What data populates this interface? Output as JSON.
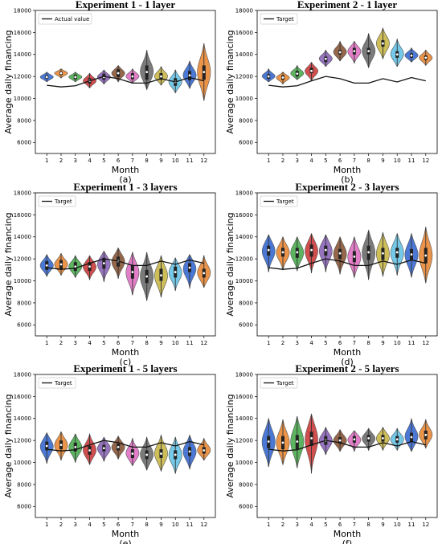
{
  "chart_data": [
    {
      "type": "violin",
      "title": "Experiment 1 - 1 layer",
      "subtitle": "(a)",
      "xlabel": "Month",
      "ylabel": "Average daily financing",
      "categories": [
        "1",
        "2",
        "3",
        "4",
        "5",
        "6",
        "7",
        "8",
        "9",
        "10",
        "11",
        "12"
      ],
      "ylim": [
        5000,
        18000
      ],
      "yticks": [
        6000,
        8000,
        10000,
        12000,
        14000,
        16000,
        18000
      ],
      "legend": "Actual value",
      "legend_loc": "upper-left",
      "median": [
        11950,
        12300,
        11950,
        11600,
        11950,
        12300,
        12000,
        12400,
        12000,
        11500,
        12100,
        12400
      ],
      "min": [
        11500,
        11850,
        11500,
        10950,
        11300,
        11500,
        11400,
        10800,
        11200,
        10500,
        10900,
        9800
      ],
      "max": [
        12400,
        12700,
        12400,
        12300,
        12600,
        13000,
        12700,
        14400,
        12900,
        12600,
        13400,
        15000
      ],
      "q1": [
        11800,
        12150,
        11750,
        11350,
        11700,
        11950,
        11750,
        11700,
        11700,
        11150,
        11650,
        11700
      ],
      "q3": [
        12100,
        12450,
        12150,
        11850,
        12250,
        12650,
        12300,
        13000,
        12300,
        11850,
        12500,
        13000
      ],
      "target": [
        11200,
        11050,
        11150,
        11600,
        12000,
        11800,
        11400,
        11400,
        11800,
        11500,
        11900,
        11600
      ]
    },
    {
      "type": "violin",
      "title": "Experiment 2 - 1 layer",
      "subtitle": "(b)",
      "xlabel": "Month",
      "ylabel": "Average daily financing",
      "categories": [
        "1",
        "2",
        "3",
        "4",
        "5",
        "6",
        "7",
        "8",
        "9",
        "10",
        "11",
        "12"
      ],
      "ylim": [
        5000,
        18000
      ],
      "yticks": [
        6000,
        8000,
        10000,
        12000,
        14000,
        16000,
        18000
      ],
      "legend": "Target",
      "legend_loc": "upper-left",
      "median": [
        12000,
        11900,
        12250,
        12500,
        13600,
        14200,
        14300,
        14300,
        15000,
        14000,
        13900,
        13700
      ],
      "min": [
        11500,
        11300,
        11700,
        11600,
        12900,
        13400,
        13200,
        12800,
        13600,
        12900,
        13300,
        13000
      ],
      "max": [
        12700,
        12400,
        13000,
        13300,
        14400,
        15200,
        15200,
        15900,
        16400,
        15400,
        14600,
        14400
      ],
      "q1": [
        11800,
        11700,
        12000,
        12300,
        13300,
        14000,
        14000,
        14000,
        14700,
        13700,
        13700,
        13500
      ],
      "q3": [
        12200,
        12100,
        12500,
        12800,
        13800,
        14400,
        14600,
        14600,
        15300,
        14300,
        14100,
        13900
      ],
      "target": [
        11200,
        11050,
        11150,
        11600,
        12000,
        11800,
        11400,
        11400,
        11800,
        11500,
        11900,
        11600
      ]
    },
    {
      "type": "violin",
      "title": "Experiment 1 - 3 layers",
      "subtitle": "(c)",
      "xlabel": "Month",
      "ylabel": "Average daily financing",
      "categories": [
        "1",
        "2",
        "3",
        "4",
        "5",
        "6",
        "7",
        "8",
        "9",
        "10",
        "11",
        "12"
      ],
      "ylim": [
        5000,
        18000
      ],
      "yticks": [
        6000,
        8000,
        10000,
        12000,
        14000,
        16000,
        18000
      ],
      "legend": "Target",
      "legend_loc": "upper-left",
      "median": [
        11400,
        11500,
        11300,
        11300,
        11600,
        11800,
        10800,
        10400,
        10500,
        10800,
        11200,
        10700
      ],
      "min": [
        10400,
        10500,
        10300,
        10100,
        9900,
        10200,
        8700,
        8200,
        8500,
        9100,
        9300,
        9400
      ],
      "max": [
        12400,
        12500,
        12300,
        12300,
        12700,
        13000,
        12600,
        12600,
        12300,
        12100,
        12400,
        12300
      ],
      "q1": [
        11000,
        11100,
        10900,
        10900,
        11100,
        11300,
        10200,
        9800,
        10000,
        10300,
        10800,
        10300
      ],
      "q3": [
        11800,
        11900,
        11700,
        11700,
        12100,
        12200,
        11400,
        11000,
        11100,
        11300,
        11600,
        11100
      ],
      "target": [
        11200,
        11050,
        11150,
        11600,
        12000,
        11800,
        11400,
        11400,
        11800,
        11500,
        11900,
        11600
      ]
    },
    {
      "type": "violin",
      "title": "Experiment 2 - 3 layers",
      "subtitle": "(d)",
      "xlabel": "Month",
      "ylabel": "Average daily financing",
      "categories": [
        "1",
        "2",
        "3",
        "4",
        "5",
        "6",
        "7",
        "8",
        "9",
        "10",
        "11",
        "12"
      ],
      "ylim": [
        5000,
        18000
      ],
      "yticks": [
        6000,
        8000,
        10000,
        12000,
        14000,
        16000,
        18000
      ],
      "legend": "Target",
      "legend_loc": "upper-left",
      "median": [
        12800,
        12600,
        12600,
        12800,
        12800,
        12500,
        12200,
        12600,
        12500,
        12600,
        12400,
        12300
      ],
      "min": [
        10800,
        11000,
        10900,
        10700,
        10800,
        10600,
        10300,
        10100,
        10400,
        10500,
        10300,
        9800
      ],
      "max": [
        14200,
        14000,
        14000,
        14300,
        14200,
        14000,
        14000,
        14600,
        14400,
        14300,
        14300,
        14900
      ],
      "q1": [
        12300,
        12200,
        12100,
        12200,
        12300,
        12000,
        11700,
        11900,
        11900,
        12100,
        11900,
        11600
      ],
      "q3": [
        13200,
        13000,
        13000,
        13300,
        13200,
        12900,
        12700,
        13200,
        13000,
        13000,
        12900,
        13000
      ],
      "target": [
        11200,
        11050,
        11150,
        11600,
        12000,
        11800,
        11400,
        11400,
        11800,
        11500,
        11900,
        11600
      ]
    },
    {
      "type": "violin",
      "title": "Experiment 1 - 5 layers",
      "subtitle": "(e)",
      "xlabel": "Month",
      "ylabel": "Average daily financing",
      "categories": [
        "1",
        "2",
        "3",
        "4",
        "5",
        "6",
        "7",
        "8",
        "9",
        "10",
        "11",
        "12"
      ],
      "ylim": [
        5000,
        18000
      ],
      "yticks": [
        6000,
        8000,
        10000,
        12000,
        14000,
        16000,
        18000
      ],
      "legend": "Target",
      "legend_loc": "upper-left",
      "median": [
        11500,
        11600,
        11400,
        11100,
        11300,
        11400,
        10800,
        10700,
        10800,
        10700,
        11000,
        11100
      ],
      "min": [
        9900,
        10200,
        10000,
        9800,
        10100,
        10300,
        9700,
        9300,
        9200,
        9000,
        9400,
        10200
      ],
      "max": [
        12700,
        12800,
        12600,
        12600,
        12300,
        12400,
        12200,
        12300,
        12500,
        12300,
        12500,
        12200
      ],
      "q1": [
        11100,
        11200,
        11000,
        10700,
        11000,
        11100,
        10400,
        10300,
        10400,
        10300,
        10600,
        10800
      ],
      "q3": [
        11900,
        12000,
        11800,
        11500,
        11600,
        11700,
        11200,
        11100,
        11200,
        11100,
        11400,
        11400
      ],
      "target": [
        11200,
        11050,
        11150,
        11600,
        12000,
        11800,
        11400,
        11400,
        11800,
        11500,
        11900,
        11600
      ]
    },
    {
      "type": "violin",
      "title": "Experiment 2 - 5 layers",
      "subtitle": "(f)",
      "xlabel": "Month",
      "ylabel": "Average daily financing",
      "categories": [
        "1",
        "2",
        "3",
        "4",
        "5",
        "6",
        "7",
        "8",
        "9",
        "10",
        "11",
        "12"
      ],
      "ylim": [
        5000,
        18000
      ],
      "yticks": [
        6000,
        8000,
        10000,
        12000,
        14000,
        16000,
        18000
      ],
      "legend": "Target",
      "legend_loc": "upper-left",
      "median": [
        11900,
        11800,
        11900,
        12200,
        12000,
        12000,
        12100,
        12200,
        12200,
        12100,
        12300,
        12500
      ],
      "min": [
        9600,
        9800,
        9500,
        9000,
        10700,
        11000,
        11000,
        11100,
        11100,
        11100,
        11000,
        11300
      ],
      "max": [
        14000,
        13900,
        14200,
        14400,
        13200,
        13000,
        12900,
        13100,
        13200,
        13100,
        14000,
        13900
      ],
      "q1": [
        11300,
        11200,
        11200,
        11500,
        11600,
        11700,
        11800,
        11900,
        11900,
        11800,
        11900,
        12100
      ],
      "q3": [
        12400,
        12400,
        12500,
        12800,
        12400,
        12300,
        12400,
        12500,
        12500,
        12400,
        12700,
        12900
      ],
      "target": [
        11200,
        11050,
        11150,
        11600,
        12000,
        11800,
        11400,
        11400,
        11800,
        11500,
        11900,
        11600
      ]
    }
  ],
  "palette": [
    "#3c6cd0",
    "#e98b3a",
    "#4fae52",
    "#cc3f3f",
    "#8d67b9",
    "#8b5a3c",
    "#df73c3",
    "#707070",
    "#c9b84c",
    "#69c4e6",
    "#3c6cd0",
    "#e98b3a"
  ]
}
